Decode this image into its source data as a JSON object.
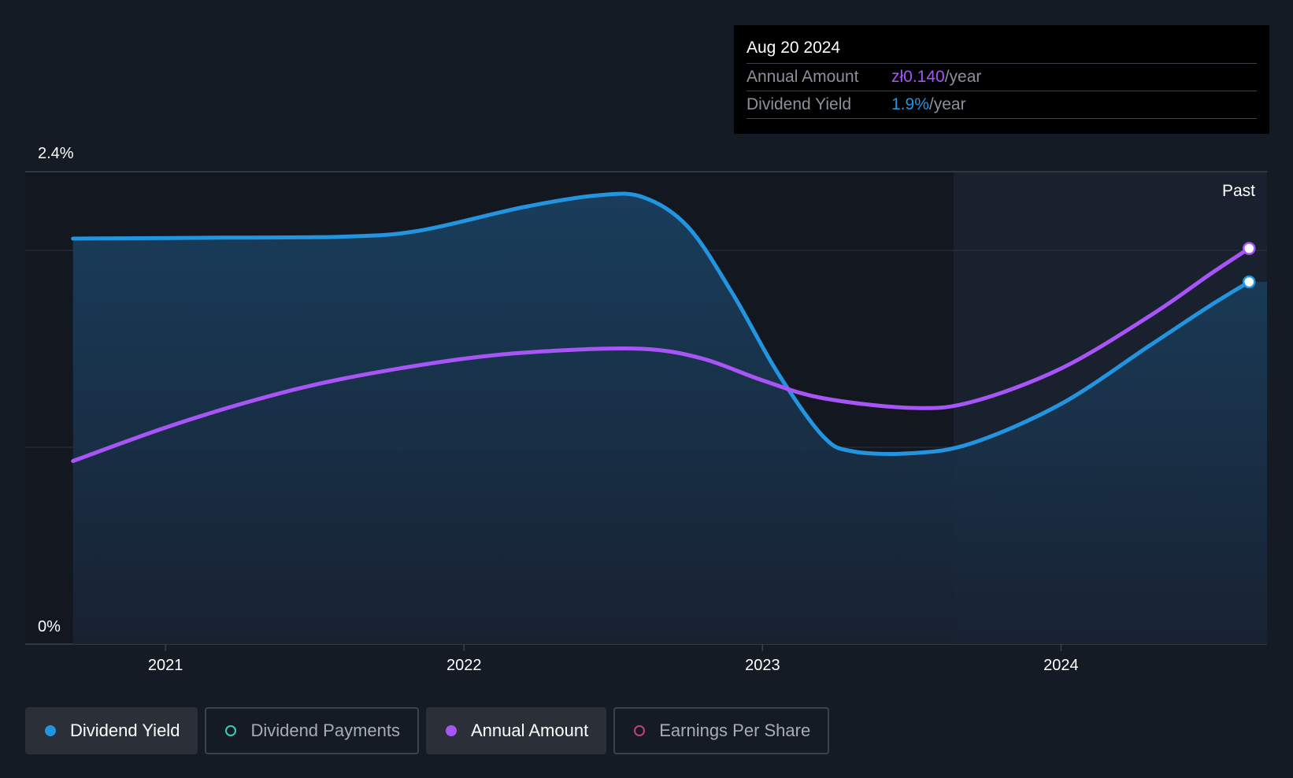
{
  "chart_data": {
    "type": "line",
    "y_axis": {
      "min_label": "0%",
      "max_label": "2.4%",
      "ylim": [
        0,
        2.4
      ]
    },
    "x_ticks": [
      {
        "label": "2021",
        "t": 2021.0
      },
      {
        "label": "2022",
        "t": 2022.0
      },
      {
        "label": "2023",
        "t": 2023.0
      },
      {
        "label": "2024",
        "t": 2024.0
      }
    ],
    "xlim": [
      2020.53,
      2024.69
    ],
    "past_region_start": 2023.64,
    "past_label": "Past",
    "series": [
      {
        "name": "Dividend Yield",
        "color": "#2394df",
        "area_fill": true,
        "points": [
          [
            2020.69,
            2.06
          ],
          [
            2021.2,
            2.065
          ],
          [
            2021.6,
            2.07
          ],
          [
            2021.85,
            2.1
          ],
          [
            2022.2,
            2.22
          ],
          [
            2022.45,
            2.28
          ],
          [
            2022.6,
            2.27
          ],
          [
            2022.75,
            2.12
          ],
          [
            2022.9,
            1.78
          ],
          [
            2023.05,
            1.38
          ],
          [
            2023.2,
            1.06
          ],
          [
            2023.3,
            0.98
          ],
          [
            2023.5,
            0.97
          ],
          [
            2023.7,
            1.02
          ],
          [
            2024.0,
            1.22
          ],
          [
            2024.3,
            1.52
          ],
          [
            2024.5,
            1.72
          ],
          [
            2024.63,
            1.84
          ]
        ]
      },
      {
        "name": "Annual Amount",
        "color": "#a855f7",
        "area_fill": false,
        "points": [
          [
            2020.69,
            0.93
          ],
          [
            2021.0,
            1.1
          ],
          [
            2021.3,
            1.24
          ],
          [
            2021.6,
            1.35
          ],
          [
            2022.0,
            1.45
          ],
          [
            2022.3,
            1.49
          ],
          [
            2022.6,
            1.5
          ],
          [
            2022.8,
            1.45
          ],
          [
            2023.0,
            1.34
          ],
          [
            2023.2,
            1.25
          ],
          [
            2023.5,
            1.2
          ],
          [
            2023.7,
            1.23
          ],
          [
            2024.0,
            1.4
          ],
          [
            2024.3,
            1.67
          ],
          [
            2024.5,
            1.88
          ],
          [
            2024.63,
            2.01
          ]
        ]
      }
    ]
  },
  "tooltip": {
    "date": "Aug 20 2024",
    "annual_amount_label": "Annual Amount",
    "annual_amount_value": "zł0.140",
    "annual_amount_unit": "/year",
    "dividend_yield_label": "Dividend Yield",
    "dividend_yield_value": "1.9%",
    "dividend_yield_unit": "/year"
  },
  "legend": [
    {
      "label": "Dividend Yield",
      "active": true,
      "filled": true,
      "color": "#2394df"
    },
    {
      "label": "Dividend Payments",
      "active": false,
      "filled": false,
      "color": "#3cc9b8"
    },
    {
      "label": "Annual Amount",
      "active": true,
      "filled": true,
      "color": "#a855f7"
    },
    {
      "label": "Earnings Per Share",
      "active": false,
      "filled": false,
      "color": "#c2417a"
    }
  ]
}
